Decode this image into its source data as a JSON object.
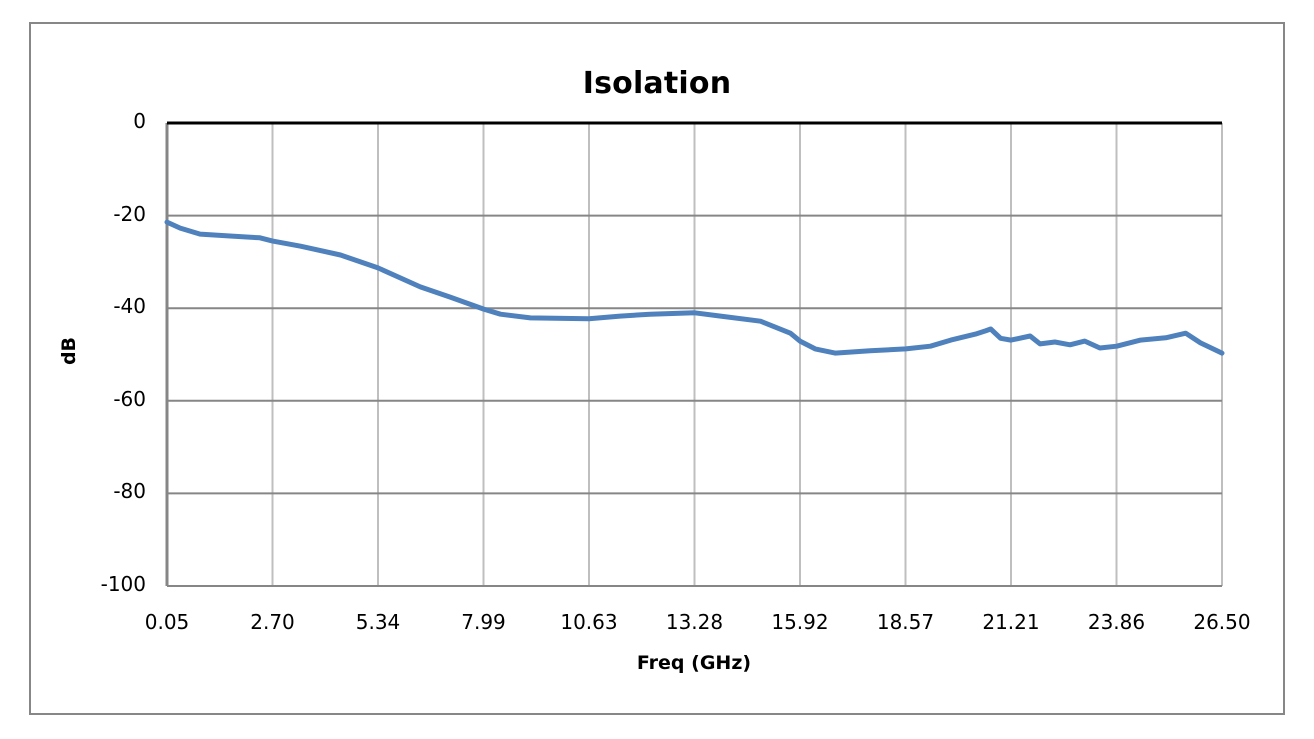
{
  "chart_data": {
    "type": "line",
    "title": "Isolation",
    "xlabel": "Freq (GHz)",
    "ylabel": "dB",
    "ylim": [
      -100,
      0
    ],
    "xlim": [
      0.05,
      26.5
    ],
    "grid": true,
    "legend": null,
    "y_ticks": [
      "0",
      "-20",
      "-40",
      "-60",
      "-80",
      "-100"
    ],
    "x_ticks": [
      "0.05",
      "2.70",
      "5.34",
      "7.99",
      "10.63",
      "13.28",
      "15.92",
      "18.57",
      "21.21",
      "23.86",
      "26.50"
    ],
    "series": [
      {
        "name": "Isolation",
        "color": "#4f81bd",
        "x": [
          0.05,
          0.38,
          0.88,
          1.63,
          2.38,
          2.7,
          3.4,
          4.4,
          5.34,
          6.4,
          7.15,
          7.99,
          8.41,
          9.16,
          10.63,
          11.41,
          12.16,
          13.28,
          13.93,
          14.93,
          15.68,
          15.92,
          16.3,
          16.8,
          17.68,
          18.57,
          19.19,
          19.7,
          20.32,
          20.57,
          20.7,
          20.95,
          21.21,
          21.69,
          21.94,
          22.31,
          22.69,
          23.06,
          23.44,
          23.86,
          24.46,
          25.09,
          25.59,
          25.96,
          26.5
        ],
        "y": [
          -21.4,
          -22.7,
          -24.0,
          -24.4,
          -24.8,
          -25.5,
          -26.6,
          -28.5,
          -31.3,
          -35.4,
          -37.6,
          -40.2,
          -41.3,
          -42.1,
          -42.3,
          -41.7,
          -41.3,
          -41.0,
          -41.7,
          -42.8,
          -45.4,
          -47.1,
          -48.8,
          -49.7,
          -49.2,
          -48.8,
          -48.2,
          -46.9,
          -45.6,
          -44.9,
          -44.5,
          -46.5,
          -46.9,
          -46.0,
          -47.7,
          -47.3,
          -47.9,
          -47.1,
          -48.6,
          -48.2,
          -46.9,
          -46.4,
          -45.4,
          -47.5,
          -49.7
        ]
      }
    ]
  }
}
